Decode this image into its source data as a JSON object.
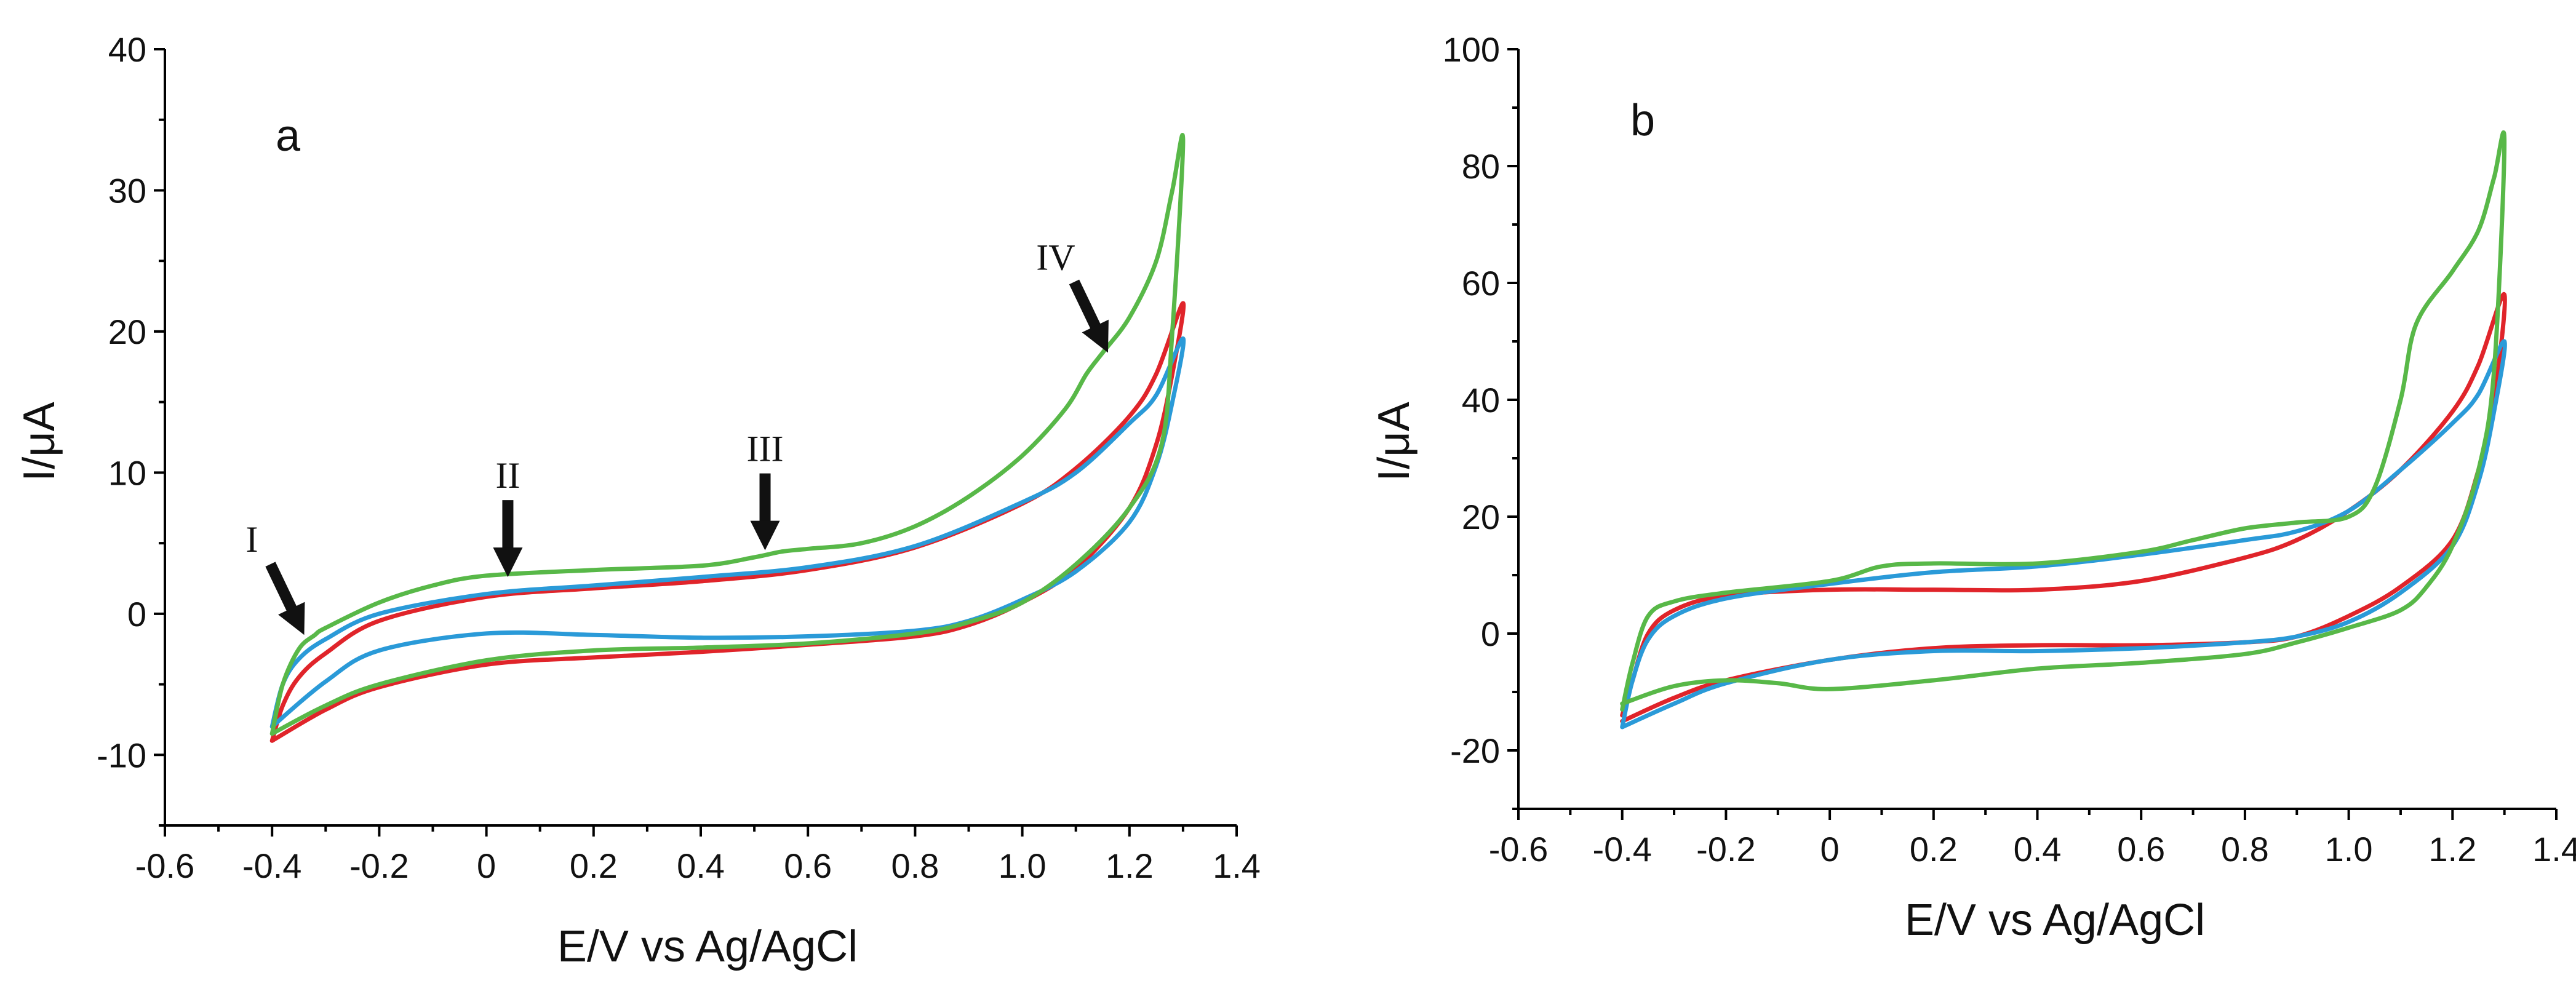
{
  "chart_data": [
    {
      "type": "line",
      "panel_label": "a",
      "xlabel": "E/V vs Ag/AgCl",
      "ylabel": "I/μA",
      "xlim": [
        -0.6,
        1.4
      ],
      "ylim": [
        -15,
        40
      ],
      "xticks": [
        -0.6,
        -0.4,
        -0.2,
        0,
        0.2,
        0.4,
        0.6,
        0.8,
        1.0,
        1.2,
        1.4
      ],
      "xtick_labels": [
        "-0.6",
        "-0.4",
        "-0.2",
        "0",
        "0.2",
        "0.4",
        "0.6",
        "0.8",
        "1.0",
        "1.2",
        "1.4"
      ],
      "yticks": [
        -10,
        0,
        10,
        20,
        30,
        40
      ],
      "ytick_labels": [
        "-10",
        "0",
        "10",
        "20",
        "30",
        "40"
      ],
      "series": [
        {
          "name": "red",
          "color": "#e0242a",
          "x": [
            -0.4,
            -0.38,
            -0.35,
            -0.3,
            -0.2,
            0,
            0.2,
            0.4,
            0.6,
            0.8,
            1.0,
            1.1,
            1.2,
            1.25,
            1.3,
            1.28,
            1.25,
            1.2,
            1.1,
            1.0,
            0.9,
            0.8,
            0.6,
            0.4,
            0.2,
            0,
            -0.2,
            -0.3,
            -0.4
          ],
          "y": [
            -9,
            -6.5,
            -4.5,
            -2.8,
            -0.5,
            1.2,
            1.8,
            2.3,
            3.1,
            4.7,
            7.8,
            10.3,
            14,
            17,
            22,
            17,
            12,
            7.5,
            3.2,
            0.8,
            -0.8,
            -1.6,
            -2.2,
            -2.7,
            -3.1,
            -3.6,
            -5.2,
            -6.8,
            -9
          ]
        },
        {
          "name": "blue",
          "color": "#2a9ad8",
          "x": [
            -0.4,
            -0.38,
            -0.35,
            -0.3,
            -0.2,
            0,
            0.2,
            0.4,
            0.6,
            0.8,
            1.0,
            1.1,
            1.2,
            1.25,
            1.3,
            1.28,
            1.25,
            1.2,
            1.1,
            1.0,
            0.9,
            0.8,
            0.6,
            0.4,
            0.2,
            0,
            -0.2,
            -0.3,
            -0.4
          ],
          "y": [
            -8,
            -5,
            -3.2,
            -1.8,
            0,
            1.4,
            2,
            2.6,
            3.3,
            4.8,
            7.9,
            10,
            13.5,
            15.5,
            19.5,
            15,
            10.5,
            6.5,
            3,
            1,
            -0.5,
            -1.2,
            -1.6,
            -1.7,
            -1.5,
            -1.4,
            -2.6,
            -4.8,
            -8
          ]
        },
        {
          "name": "green",
          "color": "#58b848",
          "x": [
            -0.4,
            -0.38,
            -0.35,
            -0.32,
            -0.3,
            -0.2,
            -0.1,
            0,
            0.2,
            0.4,
            0.5,
            0.55,
            0.6,
            0.7,
            0.8,
            0.9,
            1.0,
            1.08,
            1.12,
            1.15,
            1.2,
            1.25,
            1.28,
            1.3,
            1.28,
            1.26,
            1.2,
            1.1,
            1.0,
            0.9,
            0.8,
            0.6,
            0.4,
            0.2,
            0,
            -0.2,
            -0.3,
            -0.4
          ],
          "y": [
            -8.5,
            -5,
            -2.5,
            -1.5,
            -1,
            0.8,
            2,
            2.7,
            3.1,
            3.4,
            4,
            4.4,
            4.6,
            5,
            6.2,
            8.3,
            11.2,
            14.5,
            17,
            18.5,
            21,
            25,
            30,
            33.5,
            20,
            12,
            7.5,
            3.5,
            0.8,
            -0.6,
            -1.4,
            -2.1,
            -2.4,
            -2.6,
            -3.3,
            -5,
            -6.5,
            -8.5
          ]
        }
      ],
      "annotations": [
        {
          "label": "I",
          "x": -0.34,
          "y": -1.5,
          "direction": "down-right"
        },
        {
          "label": "II",
          "x": 0.04,
          "y": 2.6,
          "direction": "down"
        },
        {
          "label": "III",
          "x": 0.52,
          "y": 4.5,
          "direction": "down"
        },
        {
          "label": "IV",
          "x": 1.16,
          "y": 18.5,
          "direction": "down-right"
        }
      ]
    },
    {
      "type": "line",
      "panel_label": "b",
      "xlabel": "E/V vs Ag/AgCl",
      "ylabel": "I/μA",
      "xlim": [
        -0.6,
        1.4
      ],
      "ylim": [
        -30,
        100
      ],
      "xticks": [
        -0.6,
        -0.4,
        -0.2,
        0,
        0.2,
        0.4,
        0.6,
        0.8,
        1.0,
        1.2,
        1.4
      ],
      "xtick_labels": [
        "-0.6",
        "-0.4",
        "-0.2",
        "0",
        "0.2",
        "0.4",
        "0.6",
        "0.8",
        "1.0",
        "1.2",
        "1.4"
      ],
      "yticks": [
        -20,
        0,
        20,
        40,
        60,
        80,
        100
      ],
      "ytick_labels": [
        "-20",
        "0",
        "20",
        "40",
        "60",
        "80",
        "100"
      ],
      "series": [
        {
          "name": "red",
          "color": "#e0242a",
          "x": [
            -0.4,
            -0.38,
            -0.35,
            -0.3,
            -0.2,
            0,
            0.2,
            0.4,
            0.6,
            0.8,
            0.9,
            1.0,
            1.1,
            1.2,
            1.25,
            1.3,
            1.28,
            1.25,
            1.2,
            1.1,
            1.0,
            0.9,
            0.8,
            0.6,
            0.4,
            0.2,
            0,
            -0.2,
            -0.3,
            -0.4
          ],
          "y": [
            -14,
            -8,
            0,
            4,
            6.5,
            7.5,
            7.5,
            7.5,
            9,
            13,
            16,
            21,
            28,
            38,
            46,
            58,
            40,
            28,
            16,
            8,
            3,
            -0.5,
            -1.5,
            -2,
            -2,
            -2.5,
            -4.5,
            -8,
            -11,
            -15
          ]
        },
        {
          "name": "blue",
          "color": "#2a9ad8",
          "x": [
            -0.4,
            -0.38,
            -0.35,
            -0.3,
            -0.2,
            0,
            0.2,
            0.4,
            0.6,
            0.8,
            0.9,
            1.0,
            1.1,
            1.2,
            1.25,
            1.3,
            1.28,
            1.25,
            1.2,
            1.1,
            1.0,
            0.9,
            0.8,
            0.6,
            0.4,
            0.2,
            0,
            -0.2,
            -0.3,
            -0.4
          ],
          "y": [
            -16,
            -8,
            -1,
            3,
            6,
            8.5,
            10.5,
            11.5,
            13.5,
            16,
            17.5,
            21,
            28,
            36,
            41,
            50,
            38,
            26,
            15,
            7,
            2,
            -0.5,
            -1.5,
            -2.5,
            -3,
            -3,
            -4.5,
            -8.5,
            -12,
            -16
          ]
        },
        {
          "name": "green",
          "color": "#58b848",
          "x": [
            -0.4,
            -0.38,
            -0.35,
            -0.3,
            -0.2,
            0,
            0.1,
            0.2,
            0.4,
            0.6,
            0.7,
            0.8,
            0.9,
            1.0,
            1.05,
            1.1,
            1.13,
            1.2,
            1.25,
            1.28,
            1.3,
            1.28,
            1.25,
            1.2,
            1.15,
            1.1,
            1.0,
            0.9,
            0.8,
            0.6,
            0.4,
            0.2,
            0,
            -0.1,
            -0.2,
            -0.3,
            -0.4
          ],
          "y": [
            -13,
            -5,
            3,
            5.5,
            7,
            9,
            11.5,
            12,
            12,
            14,
            16,
            18,
            19,
            20,
            25,
            40,
            53,
            62,
            69,
            78,
            84,
            45,
            28,
            15,
            8,
            4,
            1,
            -1.5,
            -3.5,
            -5,
            -6,
            -8,
            -9.5,
            -8.5,
            -8,
            -9,
            -12
          ]
        }
      ]
    }
  ]
}
